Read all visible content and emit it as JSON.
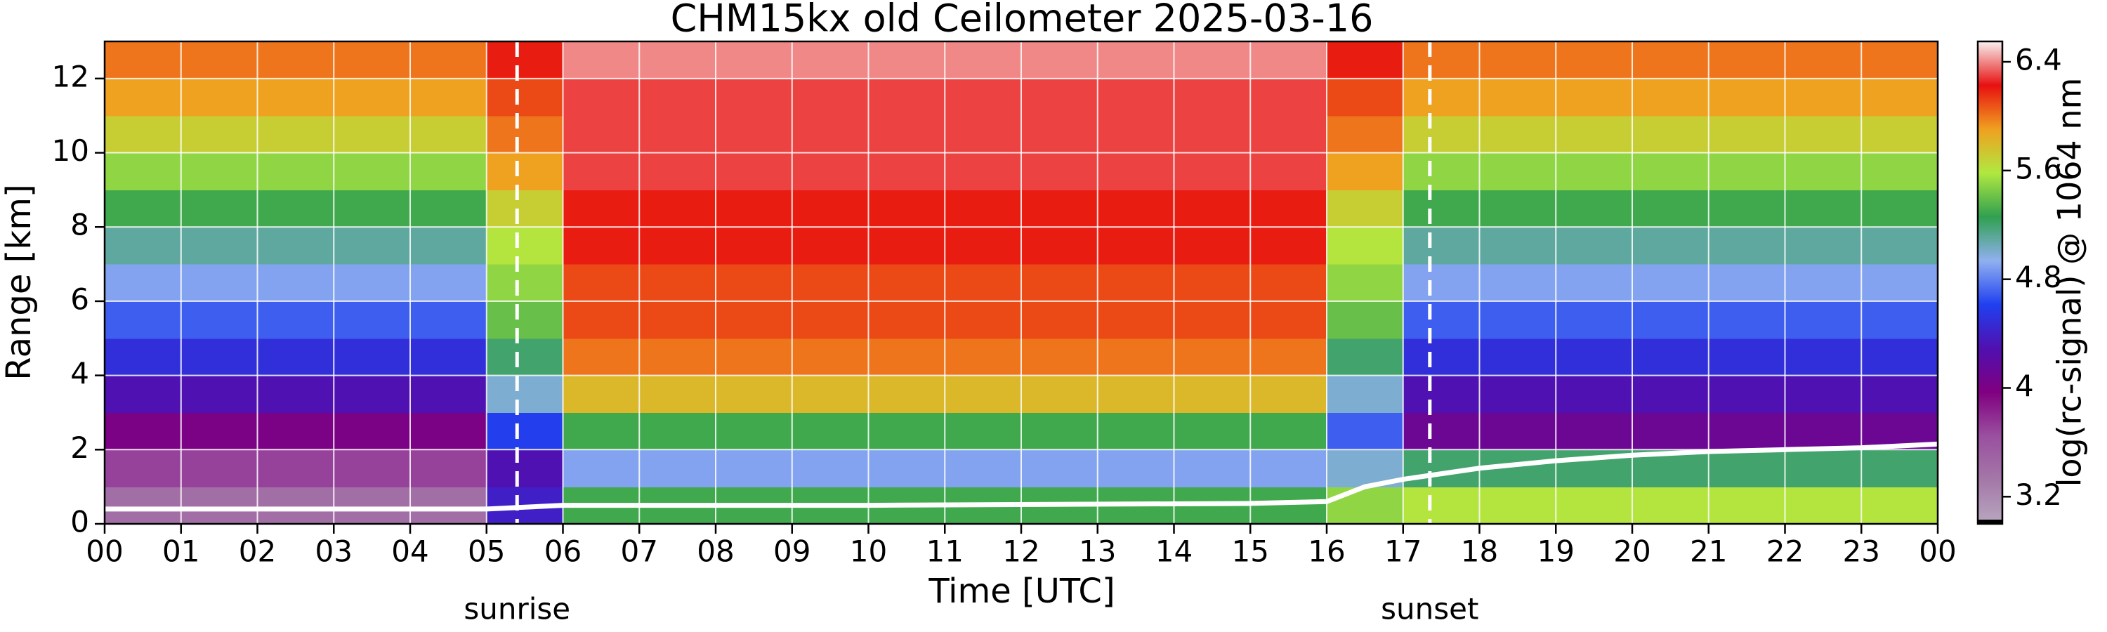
{
  "chart_data": {
    "type": "heatmap",
    "title": "CHM15kx old Ceilometer 2025-03-16",
    "xlabel": "Time [UTC]",
    "ylabel": "Range [km]",
    "colorbar_label": "log(rc-signal) @ 1064 nm",
    "xlim": [
      0,
      24
    ],
    "ylim": [
      0,
      13
    ],
    "xticks": [
      {
        "value": 0,
        "label": "00"
      },
      {
        "value": 1,
        "label": "01"
      },
      {
        "value": 2,
        "label": "02"
      },
      {
        "value": 3,
        "label": "03"
      },
      {
        "value": 4,
        "label": "04"
      },
      {
        "value": 5,
        "label": "05"
      },
      {
        "value": 6,
        "label": "06"
      },
      {
        "value": 7,
        "label": "07"
      },
      {
        "value": 8,
        "label": "08"
      },
      {
        "value": 9,
        "label": "09"
      },
      10,
      11,
      12,
      13,
      14,
      15,
      16,
      17,
      18,
      19,
      20,
      21,
      22,
      23,
      {
        "value": 24,
        "label": "00"
      }
    ],
    "yticks": [
      0,
      2,
      4,
      6,
      8,
      10,
      12
    ],
    "grid": true,
    "x_edges": [
      0,
      1,
      2,
      3,
      4,
      5,
      6,
      7,
      8,
      9,
      10,
      11,
      12,
      13,
      14,
      15,
      16,
      17,
      18,
      19,
      20,
      21,
      22,
      23,
      24
    ],
    "y_edges": [
      0,
      1,
      2,
      3,
      4,
      5,
      6,
      7,
      8,
      9,
      10,
      11,
      12,
      13
    ],
    "z": [
      [
        3.4,
        3.4,
        3.4,
        3.4,
        3.4,
        4.4,
        5.3,
        5.3,
        5.3,
        5.3,
        5.3,
        5.3,
        5.3,
        5.3,
        5.3,
        5.3,
        5.5,
        5.6,
        5.6,
        5.6,
        5.6,
        5.6,
        5.6,
        5.6
      ],
      [
        3.7,
        3.7,
        3.7,
        3.7,
        3.7,
        4.3,
        4.9,
        4.9,
        4.9,
        4.9,
        4.9,
        4.9,
        4.9,
        4.9,
        4.9,
        4.9,
        5.0,
        5.2,
        5.2,
        5.2,
        5.2,
        5.2,
        5.2,
        5.2
      ],
      [
        4.0,
        4.0,
        4.0,
        4.0,
        4.0,
        4.6,
        5.3,
        5.3,
        5.3,
        5.3,
        5.3,
        5.3,
        5.3,
        5.3,
        5.3,
        5.3,
        4.7,
        4.1,
        4.1,
        4.1,
        4.1,
        4.1,
        4.1,
        4.1
      ],
      [
        4.3,
        4.3,
        4.3,
        4.3,
        4.3,
        5.0,
        5.8,
        5.8,
        5.8,
        5.8,
        5.8,
        5.8,
        5.8,
        5.8,
        5.8,
        5.8,
        5.0,
        4.3,
        4.3,
        4.3,
        4.3,
        4.3,
        4.3,
        4.3
      ],
      [
        4.5,
        4.5,
        4.5,
        4.5,
        4.5,
        5.2,
        6.0,
        6.0,
        6.0,
        6.0,
        6.0,
        6.0,
        6.0,
        6.0,
        6.0,
        6.0,
        5.2,
        4.5,
        4.5,
        4.5,
        4.5,
        4.5,
        4.5,
        4.5
      ],
      [
        4.7,
        4.7,
        4.7,
        4.7,
        4.7,
        5.4,
        6.1,
        6.1,
        6.1,
        6.1,
        6.1,
        6.1,
        6.1,
        6.1,
        6.1,
        6.1,
        5.4,
        4.7,
        4.7,
        4.7,
        4.7,
        4.7,
        4.7,
        4.7
      ],
      [
        4.9,
        4.9,
        4.9,
        4.9,
        4.9,
        5.5,
        6.1,
        6.1,
        6.1,
        6.1,
        6.1,
        6.1,
        6.1,
        6.1,
        6.1,
        6.1,
        5.5,
        4.9,
        4.9,
        4.9,
        4.9,
        4.9,
        4.9,
        4.9
      ],
      [
        5.1,
        5.1,
        5.1,
        5.1,
        5.1,
        5.6,
        6.2,
        6.2,
        6.2,
        6.2,
        6.2,
        6.2,
        6.2,
        6.2,
        6.2,
        6.2,
        5.6,
        5.1,
        5.1,
        5.1,
        5.1,
        5.1,
        5.1,
        5.1
      ],
      [
        5.3,
        5.3,
        5.3,
        5.3,
        5.3,
        5.7,
        6.2,
        6.2,
        6.2,
        6.2,
        6.2,
        6.2,
        6.2,
        6.2,
        6.2,
        6.2,
        5.7,
        5.3,
        5.3,
        5.3,
        5.3,
        5.3,
        5.3,
        5.3
      ],
      [
        5.5,
        5.5,
        5.5,
        5.5,
        5.5,
        5.9,
        6.3,
        6.3,
        6.3,
        6.3,
        6.3,
        6.3,
        6.3,
        6.3,
        6.3,
        6.3,
        5.9,
        5.5,
        5.5,
        5.5,
        5.5,
        5.5,
        5.5,
        5.5
      ],
      [
        5.7,
        5.7,
        5.7,
        5.7,
        5.7,
        6.0,
        6.3,
        6.3,
        6.3,
        6.3,
        6.3,
        6.3,
        6.3,
        6.3,
        6.3,
        6.3,
        6.0,
        5.7,
        5.7,
        5.7,
        5.7,
        5.7,
        5.7,
        5.7
      ],
      [
        5.9,
        5.9,
        5.9,
        5.9,
        5.9,
        6.1,
        6.3,
        6.3,
        6.3,
        6.3,
        6.3,
        6.3,
        6.3,
        6.3,
        6.3,
        6.3,
        6.1,
        5.9,
        5.9,
        5.9,
        5.9,
        5.9,
        5.9,
        5.9
      ],
      [
        6.0,
        6.0,
        6.0,
        6.0,
        6.0,
        6.2,
        6.4,
        6.4,
        6.4,
        6.4,
        6.4,
        6.4,
        6.4,
        6.4,
        6.4,
        6.4,
        6.2,
        6.0,
        6.0,
        6.0,
        6.0,
        6.0,
        6.0,
        6.0
      ]
    ],
    "clim": [
      3.0,
      6.55
    ],
    "colorbar_ticks": [
      3.2,
      4,
      4.8,
      5.6,
      6.4
    ],
    "colormap": [
      "#b8a8c0",
      "#a478a8",
      "#9a50a0",
      "#800080",
      "#5010b0",
      "#2040f0",
      "#90b0f0",
      "#30a050",
      "#b0e840",
      "#f0a020",
      "#e81010",
      "#f8f0f0"
    ],
    "layer_top": {
      "color": "#ffffff",
      "x": [
        0,
        5,
        6,
        10,
        15,
        16,
        16.5,
        17,
        18,
        19,
        20,
        21,
        22,
        23,
        24
      ],
      "values": [
        0.4,
        0.4,
        0.5,
        0.5,
        0.55,
        0.6,
        1.0,
        1.2,
        1.5,
        1.7,
        1.85,
        1.95,
        2.0,
        2.05,
        2.15
      ]
    },
    "annotations": [
      {
        "text": "sunrise",
        "x": 5.4
      },
      {
        "text": "sunset",
        "x": 17.35
      }
    ]
  }
}
